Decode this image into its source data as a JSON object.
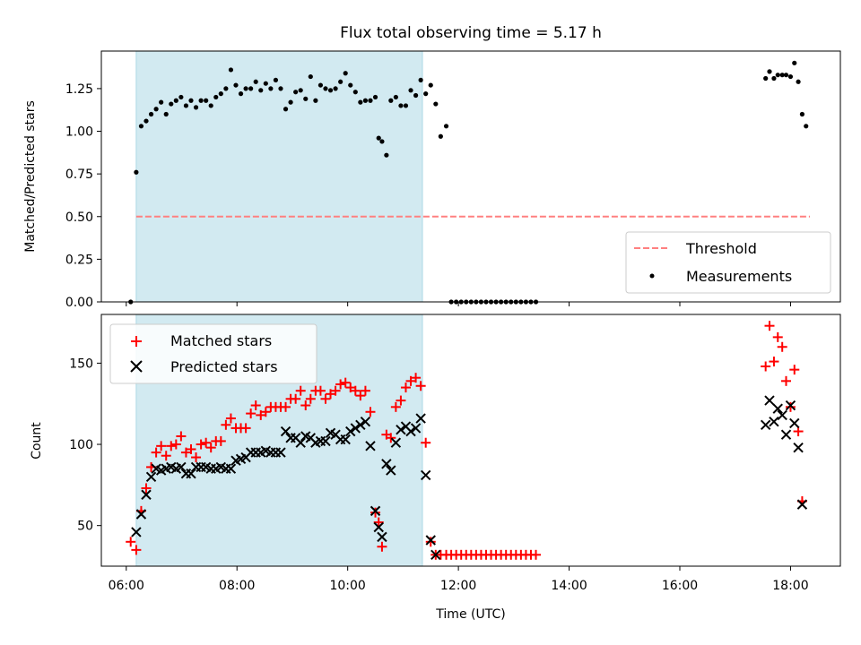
{
  "title": "Flux total observing time = 5.17 h",
  "colors": {
    "band": "#add8e6",
    "threshold": "#ff8080",
    "measurement": "#000000",
    "matched": "#ff0000",
    "predicted": "#000000"
  },
  "chart_data": [
    {
      "type": "scatter",
      "ylabel": "Matched/Predicted stars",
      "ylim": [
        0,
        1.47
      ],
      "yticks": [
        0.0,
        0.25,
        0.5,
        0.75,
        1.0,
        1.25
      ],
      "ytick_labels": [
        "0.00",
        "0.25",
        "0.50",
        "0.75",
        "1.00",
        "1.25"
      ],
      "xlim": [
        5.55,
        18.9
      ],
      "observing_window": [
        6.18,
        11.35
      ],
      "legend": [
        "Threshold",
        "Measurements"
      ],
      "legend_position": "lower-right",
      "threshold": {
        "name": "Threshold",
        "value": 0.5,
        "x": [
          6.18,
          18.35
        ]
      },
      "series": [
        {
          "name": "Measurements",
          "points": [
            [
              6.08,
              0.0
            ],
            [
              6.18,
              0.76
            ],
            [
              6.27,
              1.03
            ],
            [
              6.36,
              1.06
            ],
            [
              6.45,
              1.1
            ],
            [
              6.54,
              1.13
            ],
            [
              6.63,
              1.17
            ],
            [
              6.72,
              1.1
            ],
            [
              6.81,
              1.16
            ],
            [
              6.9,
              1.18
            ],
            [
              6.99,
              1.2
            ],
            [
              7.08,
              1.15
            ],
            [
              7.17,
              1.18
            ],
            [
              7.26,
              1.14
            ],
            [
              7.35,
              1.18
            ],
            [
              7.44,
              1.18
            ],
            [
              7.53,
              1.15
            ],
            [
              7.62,
              1.2
            ],
            [
              7.71,
              1.22
            ],
            [
              7.8,
              1.25
            ],
            [
              7.89,
              1.36
            ],
            [
              7.98,
              1.27
            ],
            [
              8.07,
              1.22
            ],
            [
              8.16,
              1.25
            ],
            [
              8.25,
              1.25
            ],
            [
              8.34,
              1.29
            ],
            [
              8.43,
              1.24
            ],
            [
              8.52,
              1.28
            ],
            [
              8.61,
              1.25
            ],
            [
              8.7,
              1.3
            ],
            [
              8.79,
              1.25
            ],
            [
              8.88,
              1.13
            ],
            [
              8.97,
              1.17
            ],
            [
              9.06,
              1.23
            ],
            [
              9.15,
              1.24
            ],
            [
              9.24,
              1.19
            ],
            [
              9.33,
              1.32
            ],
            [
              9.42,
              1.18
            ],
            [
              9.51,
              1.27
            ],
            [
              9.6,
              1.25
            ],
            [
              9.69,
              1.24
            ],
            [
              9.78,
              1.25
            ],
            [
              9.87,
              1.29
            ],
            [
              9.96,
              1.34
            ],
            [
              10.05,
              1.27
            ],
            [
              10.14,
              1.23
            ],
            [
              10.23,
              1.17
            ],
            [
              10.32,
              1.18
            ],
            [
              10.41,
              1.18
            ],
            [
              10.5,
              1.2
            ],
            [
              10.56,
              0.96
            ],
            [
              10.62,
              0.94
            ],
            [
              10.7,
              0.86
            ],
            [
              10.78,
              1.18
            ],
            [
              10.87,
              1.2
            ],
            [
              10.96,
              1.15
            ],
            [
              11.05,
              1.15
            ],
            [
              11.14,
              1.24
            ],
            [
              11.23,
              1.21
            ],
            [
              11.32,
              1.3
            ],
            [
              11.41,
              1.22
            ],
            [
              11.5,
              1.27
            ],
            [
              11.59,
              1.16
            ],
            [
              11.68,
              0.97
            ],
            [
              11.78,
              1.03
            ],
            [
              11.87,
              0.0
            ],
            [
              11.96,
              0.0
            ],
            [
              12.05,
              0.0
            ],
            [
              12.14,
              0.0
            ],
            [
              12.23,
              0.0
            ],
            [
              12.32,
              0.0
            ],
            [
              12.41,
              0.0
            ],
            [
              12.5,
              0.0
            ],
            [
              12.59,
              0.0
            ],
            [
              12.68,
              0.0
            ],
            [
              12.77,
              0.0
            ],
            [
              12.86,
              0.0
            ],
            [
              12.95,
              0.0
            ],
            [
              13.04,
              0.0
            ],
            [
              13.13,
              0.0
            ],
            [
              13.22,
              0.0
            ],
            [
              13.31,
              0.0
            ],
            [
              13.4,
              0.0
            ],
            [
              17.55,
              1.31
            ],
            [
              17.62,
              1.35
            ],
            [
              17.7,
              1.31
            ],
            [
              17.77,
              1.33
            ],
            [
              17.85,
              1.33
            ],
            [
              17.92,
              1.33
            ],
            [
              18.0,
              1.32
            ],
            [
              18.07,
              1.4
            ],
            [
              18.14,
              1.29
            ],
            [
              18.21,
              1.1
            ],
            [
              18.28,
              1.03
            ]
          ]
        }
      ]
    },
    {
      "type": "scatter",
      "xlabel": "Time (UTC)",
      "ylabel": "Count",
      "ylim": [
        25,
        180
      ],
      "yticks": [
        50,
        100,
        150
      ],
      "ytick_labels": [
        "50",
        "100",
        "150"
      ],
      "xlim": [
        5.55,
        18.9
      ],
      "xticks": [
        6,
        8,
        10,
        12,
        14,
        16,
        18
      ],
      "xtick_labels": [
        "06:00",
        "08:00",
        "10:00",
        "12:00",
        "14:00",
        "16:00",
        "18:00"
      ],
      "observing_window": [
        6.18,
        11.35
      ],
      "legend": [
        "Matched stars",
        "Predicted stars"
      ],
      "legend_position": "upper-left",
      "series": [
        {
          "name": "Matched stars",
          "points": [
            [
              6.08,
              40
            ],
            [
              6.18,
              35
            ],
            [
              6.27,
              59
            ],
            [
              6.36,
              73
            ],
            [
              6.45,
              86
            ],
            [
              6.54,
              95
            ],
            [
              6.63,
              99
            ],
            [
              6.72,
              93
            ],
            [
              6.81,
              99
            ],
            [
              6.9,
              100
            ],
            [
              6.99,
              105
            ],
            [
              7.08,
              95
            ],
            [
              7.17,
              97
            ],
            [
              7.26,
              92
            ],
            [
              7.35,
              100
            ],
            [
              7.44,
              101
            ],
            [
              7.53,
              98
            ],
            [
              7.62,
              102
            ],
            [
              7.71,
              102
            ],
            [
              7.8,
              112
            ],
            [
              7.89,
              116
            ],
            [
              7.98,
              110
            ],
            [
              8.07,
              110
            ],
            [
              8.16,
              110
            ],
            [
              8.25,
              119
            ],
            [
              8.34,
              124
            ],
            [
              8.43,
              118
            ],
            [
              8.52,
              120
            ],
            [
              8.61,
              123
            ],
            [
              8.7,
              123
            ],
            [
              8.79,
              123
            ],
            [
              8.88,
              123
            ],
            [
              8.97,
              128
            ],
            [
              9.06,
              128
            ],
            [
              9.15,
              133
            ],
            [
              9.24,
              124
            ],
            [
              9.33,
              128
            ],
            [
              9.42,
              133
            ],
            [
              9.51,
              133
            ],
            [
              9.6,
              128
            ],
            [
              9.69,
              131
            ],
            [
              9.78,
              133
            ],
            [
              9.87,
              137
            ],
            [
              9.96,
              138
            ],
            [
              10.05,
              135
            ],
            [
              10.14,
              133
            ],
            [
              10.23,
              130
            ],
            [
              10.32,
              133
            ],
            [
              10.41,
              120
            ],
            [
              10.5,
              58
            ],
            [
              10.56,
              52
            ],
            [
              10.62,
              37
            ],
            [
              10.7,
              106
            ],
            [
              10.78,
              104
            ],
            [
              10.87,
              123
            ],
            [
              10.96,
              127
            ],
            [
              11.05,
              135
            ],
            [
              11.14,
              139
            ],
            [
              11.23,
              141
            ],
            [
              11.32,
              136
            ],
            [
              11.41,
              101
            ],
            [
              11.5,
              40
            ],
            [
              11.59,
              32
            ],
            [
              11.68,
              32
            ],
            [
              11.78,
              32
            ],
            [
              11.87,
              32
            ],
            [
              11.96,
              32
            ],
            [
              12.05,
              32
            ],
            [
              12.14,
              32
            ],
            [
              12.23,
              32
            ],
            [
              12.32,
              32
            ],
            [
              12.41,
              32
            ],
            [
              12.5,
              32
            ],
            [
              12.59,
              32
            ],
            [
              12.68,
              32
            ],
            [
              12.77,
              32
            ],
            [
              12.86,
              32
            ],
            [
              12.95,
              32
            ],
            [
              13.04,
              32
            ],
            [
              13.13,
              32
            ],
            [
              13.22,
              32
            ],
            [
              13.31,
              32
            ],
            [
              13.4,
              32
            ],
            [
              17.55,
              148
            ],
            [
              17.62,
              173
            ],
            [
              17.7,
              151
            ],
            [
              17.77,
              166
            ],
            [
              17.85,
              160
            ],
            [
              17.92,
              139
            ],
            [
              18.0,
              123
            ],
            [
              18.07,
              146
            ],
            [
              18.14,
              108
            ],
            [
              18.21,
              65
            ]
          ]
        },
        {
          "name": "Predicted stars",
          "points": [
            [
              6.18,
              46
            ],
            [
              6.27,
              57
            ],
            [
              6.36,
              69
            ],
            [
              6.45,
              80
            ],
            [
              6.54,
              85
            ],
            [
              6.63,
              84
            ],
            [
              6.72,
              85
            ],
            [
              6.81,
              86
            ],
            [
              6.9,
              85
            ],
            [
              6.99,
              86
            ],
            [
              7.08,
              82
            ],
            [
              7.17,
              82
            ],
            [
              7.26,
              86
            ],
            [
              7.35,
              86
            ],
            [
              7.44,
              86
            ],
            [
              7.53,
              85
            ],
            [
              7.62,
              85
            ],
            [
              7.71,
              86
            ],
            [
              7.8,
              85
            ],
            [
              7.89,
              85
            ],
            [
              7.98,
              90
            ],
            [
              8.07,
              91
            ],
            [
              8.16,
              92
            ],
            [
              8.25,
              95
            ],
            [
              8.34,
              95
            ],
            [
              8.43,
              95
            ],
            [
              8.52,
              96
            ],
            [
              8.61,
              95
            ],
            [
              8.7,
              95
            ],
            [
              8.79,
              95
            ],
            [
              8.88,
              108
            ],
            [
              8.97,
              104
            ],
            [
              9.06,
              104
            ],
            [
              9.15,
              101
            ],
            [
              9.24,
              105
            ],
            [
              9.33,
              104
            ],
            [
              9.42,
              101
            ],
            [
              9.51,
              102
            ],
            [
              9.6,
              102
            ],
            [
              9.69,
              107
            ],
            [
              9.78,
              106
            ],
            [
              9.87,
              103
            ],
            [
              9.96,
              103
            ],
            [
              10.05,
              108
            ],
            [
              10.14,
              110
            ],
            [
              10.23,
              112
            ],
            [
              10.32,
              114
            ],
            [
              10.41,
              99
            ],
            [
              10.5,
              59
            ],
            [
              10.56,
              49
            ],
            [
              10.62,
              43
            ],
            [
              10.7,
              88
            ],
            [
              10.78,
              84
            ],
            [
              10.87,
              101
            ],
            [
              10.96,
              109
            ],
            [
              11.05,
              111
            ],
            [
              11.14,
              108
            ],
            [
              11.23,
              110
            ],
            [
              11.32,
              116
            ],
            [
              11.41,
              81
            ],
            [
              11.5,
              41
            ],
            [
              11.59,
              32
            ],
            [
              17.55,
              112
            ],
            [
              17.62,
              127
            ],
            [
              17.7,
              114
            ],
            [
              17.77,
              122
            ],
            [
              17.85,
              118
            ],
            [
              17.92,
              106
            ],
            [
              18.0,
              124
            ],
            [
              18.07,
              113
            ],
            [
              18.14,
              98
            ],
            [
              18.21,
              63
            ]
          ]
        }
      ]
    }
  ]
}
